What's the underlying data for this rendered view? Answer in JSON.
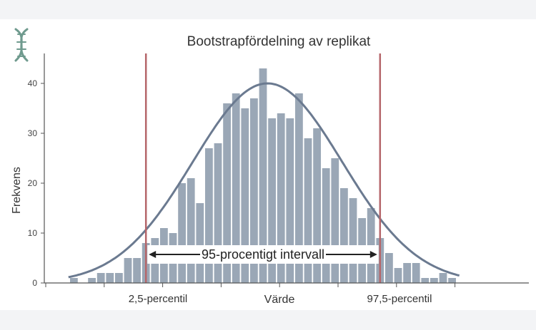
{
  "chart_data": {
    "type": "bar",
    "title": "Bootstrapfördelning av replikat",
    "xlabel": "Värde",
    "ylabel": "Frekvens",
    "ylim": [
      0,
      46
    ],
    "yticks": [
      0,
      10,
      20,
      30,
      40
    ],
    "grid": false,
    "legend": "none",
    "x_tick_labels": [
      "2,5-percentil",
      "97,5-percentil"
    ],
    "bin_frequencies": [
      1,
      0,
      1,
      2,
      2,
      2,
      5,
      5,
      8,
      9,
      11,
      10,
      20,
      21,
      16,
      27,
      28,
      36,
      38,
      35,
      37,
      43,
      33,
      34,
      33,
      38,
      29,
      31,
      23,
      25,
      19,
      17,
      13,
      15,
      9,
      6,
      3,
      4,
      4,
      1,
      1,
      2,
      1
    ],
    "density_curve_peak": 40,
    "percentile_lines_bin_index": [
      8.5,
      34.5
    ],
    "annotation": "95-procentigt intervall",
    "colors": {
      "bars": "#9aa7b6",
      "curve": "#6b7a90",
      "percentile_lines": "#b5666a",
      "axis": "#555555"
    },
    "icon": "dna-helix-icon"
  }
}
